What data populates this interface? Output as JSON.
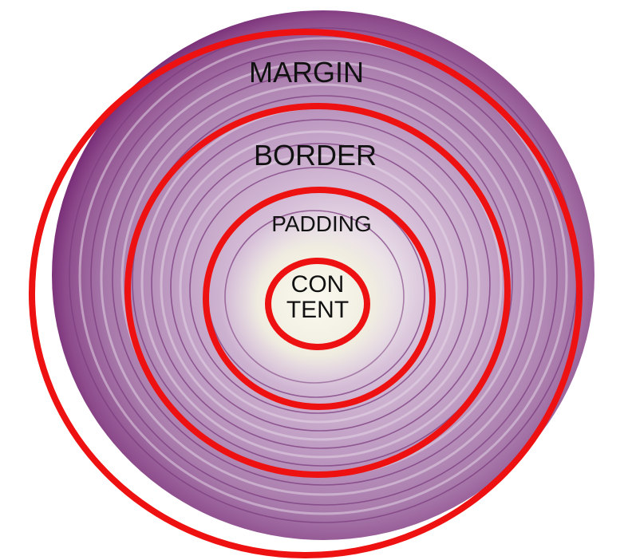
{
  "labels": {
    "margin": "MARGIN",
    "border": "BORDER",
    "padding": "PADDING",
    "content_line1": "CON",
    "content_line2": "TENT"
  },
  "colors": {
    "ring_red": "#ee1111",
    "onion_outer": "#7a2a78",
    "onion_mid": "#a56aa6",
    "onion_light": "#d4b4d6",
    "onion_center": "#f2efe4"
  }
}
